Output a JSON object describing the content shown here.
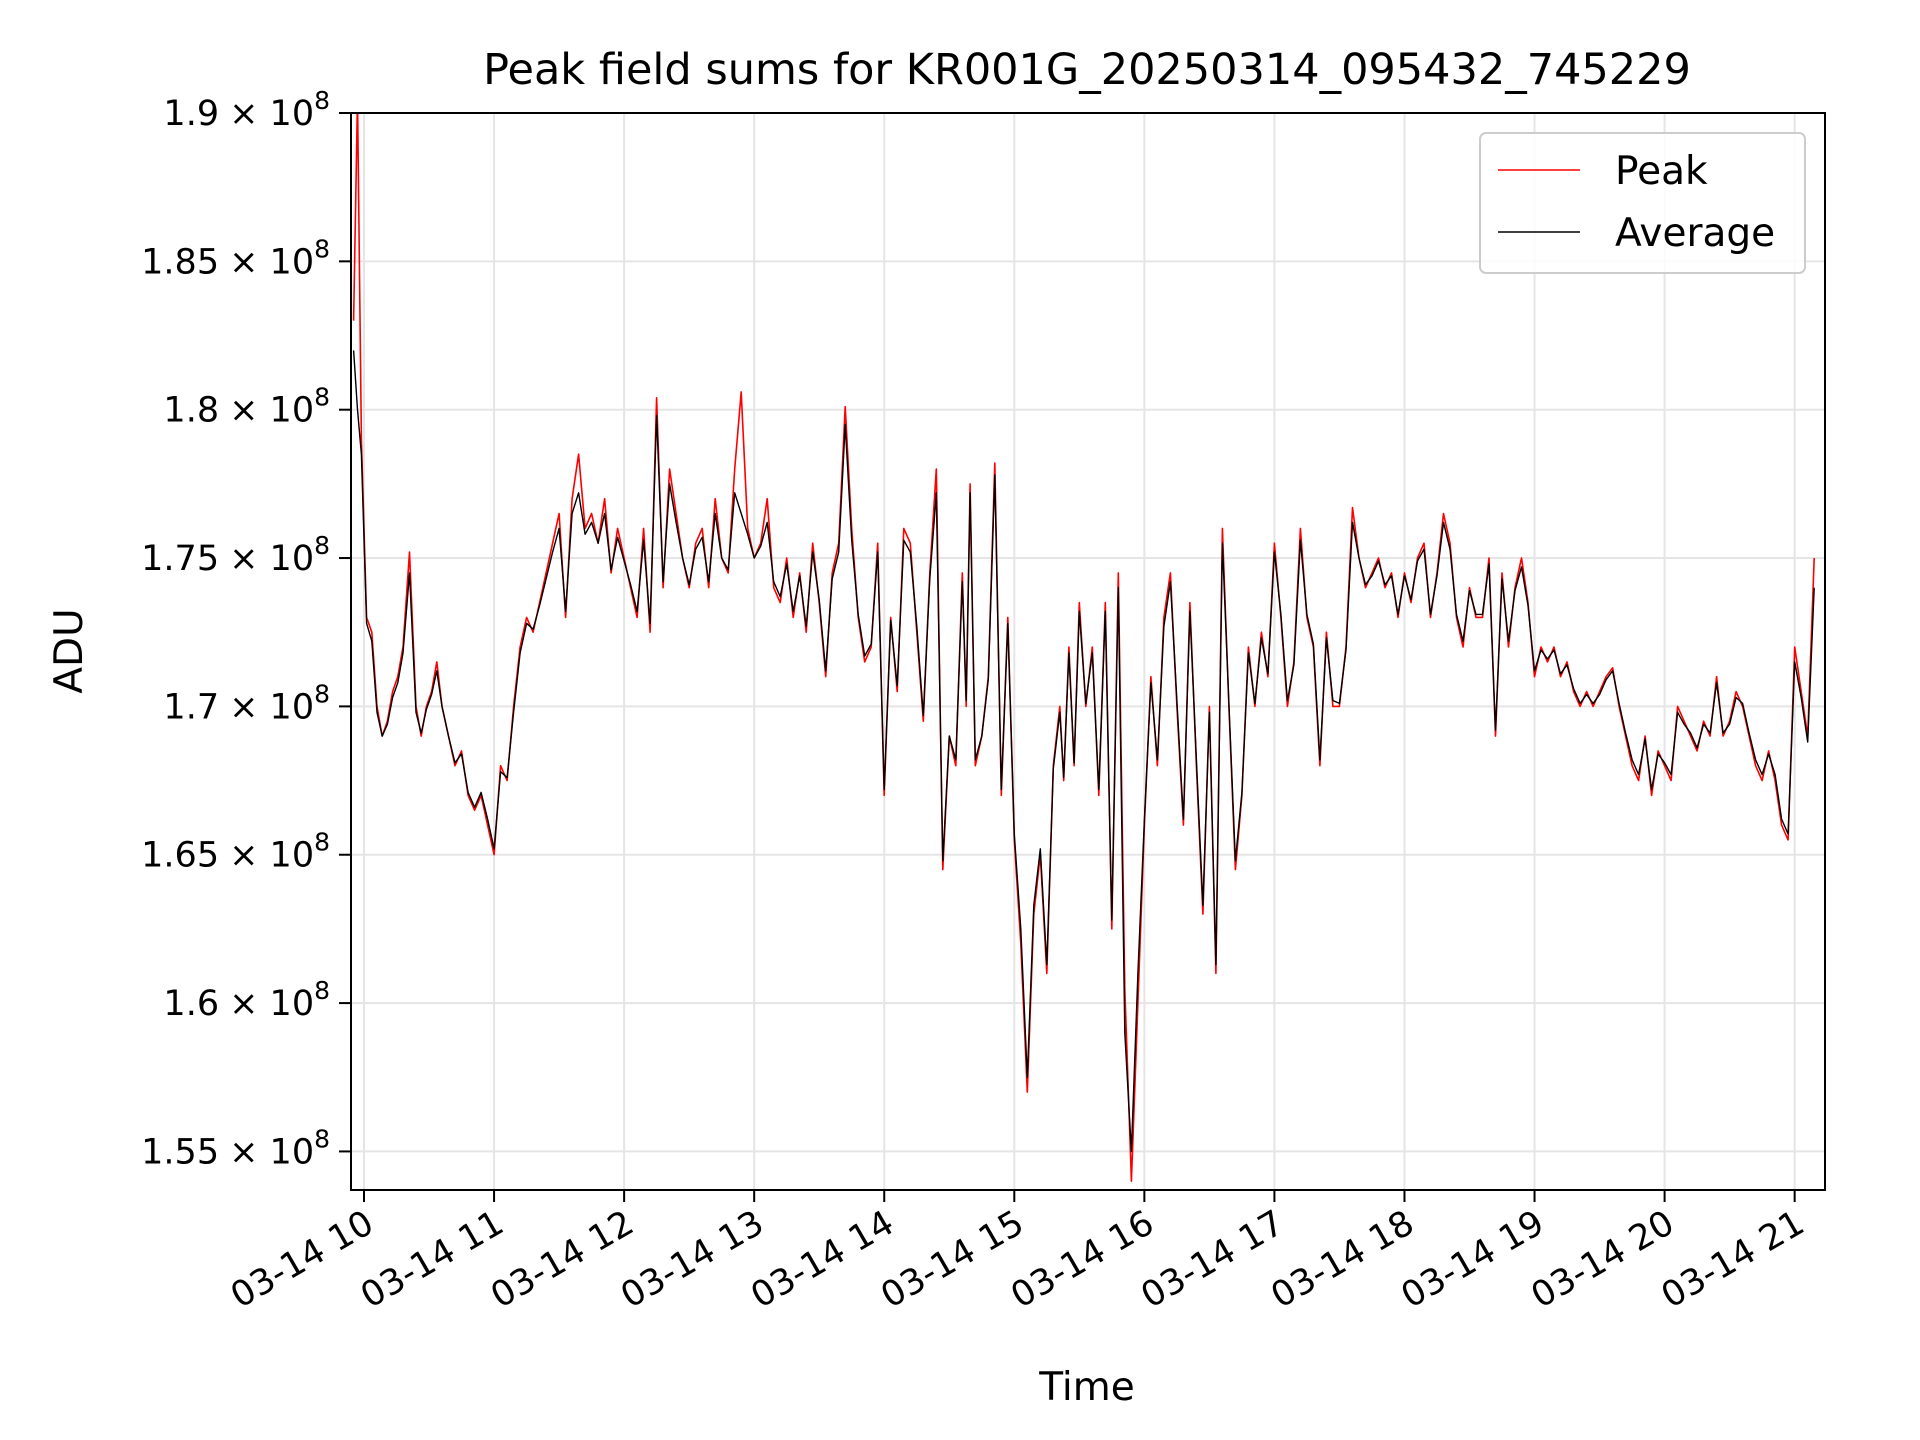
{
  "chart_data": {
    "type": "line",
    "title": "Peak field sums for KR001G_20250314_095432_745229",
    "xlabel": "Time",
    "ylabel": "ADU",
    "xlim": [
      "03-14 09:54",
      "03-14 21:14"
    ],
    "ylim": [
      153700000.0,
      190000000.0
    ],
    "grid": true,
    "legend": "upper-right",
    "x_ticks": [
      {
        "label": "03-14 10",
        "hour": 10
      },
      {
        "label": "03-14 11",
        "hour": 11
      },
      {
        "label": "03-14 12",
        "hour": 12
      },
      {
        "label": "03-14 13",
        "hour": 13
      },
      {
        "label": "03-14 14",
        "hour": 14
      },
      {
        "label": "03-14 15",
        "hour": 15
      },
      {
        "label": "03-14 16",
        "hour": 16
      },
      {
        "label": "03-14 17",
        "hour": 17
      },
      {
        "label": "03-14 18",
        "hour": 18
      },
      {
        "label": "03-14 19",
        "hour": 19
      },
      {
        "label": "03-14 20",
        "hour": 20
      },
      {
        "label": "03-14 21",
        "hour": 21
      }
    ],
    "y_ticks": [
      {
        "mantissa": "1.55",
        "value": 155000000.0
      },
      {
        "mantissa": "1.6",
        "value": 160000000.0
      },
      {
        "mantissa": "1.65",
        "value": 165000000.0
      },
      {
        "mantissa": "1.7",
        "value": 170000000.0
      },
      {
        "mantissa": "1.75",
        "value": 175000000.0
      },
      {
        "mantissa": "1.8",
        "value": 180000000.0
      },
      {
        "mantissa": "1.85",
        "value": 185000000.0
      },
      {
        "mantissa": "1.9",
        "value": 190000000.0
      }
    ],
    "y_tick_base": "× 10",
    "y_tick_exponent": "8",
    "x_hours": [
      9.92,
      9.95,
      9.98,
      10.02,
      10.06,
      10.1,
      10.14,
      10.18,
      10.22,
      10.26,
      10.3,
      10.35,
      10.4,
      10.44,
      10.48,
      10.52,
      10.56,
      10.6,
      10.65,
      10.7,
      10.75,
      10.8,
      10.85,
      10.9,
      10.95,
      11.0,
      11.05,
      11.1,
      11.15,
      11.2,
      11.25,
      11.3,
      11.35,
      11.4,
      11.45,
      11.5,
      11.55,
      11.6,
      11.65,
      11.7,
      11.75,
      11.8,
      11.85,
      11.9,
      11.95,
      12.0,
      12.05,
      12.1,
      12.15,
      12.2,
      12.25,
      12.3,
      12.35,
      12.4,
      12.45,
      12.5,
      12.55,
      12.6,
      12.65,
      12.7,
      12.75,
      12.8,
      12.85,
      12.9,
      12.95,
      13.0,
      13.05,
      13.1,
      13.15,
      13.2,
      13.25,
      13.3,
      13.35,
      13.4,
      13.45,
      13.5,
      13.55,
      13.6,
      13.65,
      13.7,
      13.75,
      13.8,
      13.85,
      13.9,
      13.95,
      14.0,
      14.05,
      14.1,
      14.15,
      14.2,
      14.25,
      14.3,
      14.35,
      14.4,
      14.45,
      14.5,
      14.55,
      14.6,
      14.63,
      14.66,
      14.7,
      14.75,
      14.8,
      14.85,
      14.9,
      14.95,
      15.0,
      15.05,
      15.1,
      15.15,
      15.2,
      15.25,
      15.3,
      15.35,
      15.38,
      15.42,
      15.46,
      15.5,
      15.55,
      15.6,
      15.65,
      15.7,
      15.75,
      15.8,
      15.85,
      15.9,
      15.95,
      16.0,
      16.05,
      16.1,
      16.15,
      16.2,
      16.25,
      16.3,
      16.35,
      16.4,
      16.45,
      16.5,
      16.55,
      16.6,
      16.65,
      16.7,
      16.75,
      16.8,
      16.85,
      16.9,
      16.95,
      17.0,
      17.05,
      17.1,
      17.15,
      17.2,
      17.25,
      17.3,
      17.35,
      17.4,
      17.45,
      17.5,
      17.55,
      17.6,
      17.65,
      17.7,
      17.75,
      17.8,
      17.85,
      17.9,
      17.95,
      18.0,
      18.05,
      18.1,
      18.15,
      18.2,
      18.25,
      18.3,
      18.35,
      18.4,
      18.45,
      18.5,
      18.55,
      18.6,
      18.65,
      18.7,
      18.75,
      18.8,
      18.85,
      18.9,
      18.95,
      19.0,
      19.05,
      19.1,
      19.15,
      19.2,
      19.25,
      19.3,
      19.35,
      19.4,
      19.45,
      19.5,
      19.55,
      19.6,
      19.65,
      19.7,
      19.75,
      19.8,
      19.85,
      19.9,
      19.95,
      20.0,
      20.05,
      20.1,
      20.15,
      20.2,
      20.25,
      20.3,
      20.35,
      20.4,
      20.45,
      20.5,
      20.55,
      20.6,
      20.65,
      20.7,
      20.75,
      20.8,
      20.85,
      20.9,
      20.95,
      21.0,
      21.05,
      21.1,
      21.15,
      21.2
    ],
    "series": [
      {
        "name": "Peak",
        "color": "#ff0000",
        "values": [
          183000000.0,
          190500000.0,
          179000000.0,
          173000000.0,
          172500000.0,
          170000000.0,
          169000000.0,
          169500000.0,
          170500000.0,
          171000000.0,
          172000000.0,
          175200000.0,
          170000000.0,
          169000000.0,
          170000000.0,
          170500000.0,
          171500000.0,
          170000000.0,
          169000000.0,
          168000000.0,
          168500000.0,
          167000000.0,
          166500000.0,
          167000000.0,
          166000000.0,
          165000000.0,
          168000000.0,
          167500000.0,
          170000000.0,
          172000000.0,
          173000000.0,
          172500000.0,
          173500000.0,
          174500000.0,
          175500000.0,
          176500000.0,
          173000000.0,
          177000000.0,
          178500000.0,
          176000000.0,
          176500000.0,
          175500000.0,
          177000000.0,
          174500000.0,
          176000000.0,
          175000000.0,
          174000000.0,
          173000000.0,
          176000000.0,
          172500000.0,
          180400000.0,
          174000000.0,
          178000000.0,
          176500000.0,
          175000000.0,
          174000000.0,
          175500000.0,
          176000000.0,
          174000000.0,
          177000000.0,
          175000000.0,
          174500000.0,
          178000000.0,
          180600000.0,
          176000000.0,
          175000000.0,
          175500000.0,
          177000000.0,
          174000000.0,
          173500000.0,
          175000000.0,
          173000000.0,
          174500000.0,
          172500000.0,
          175500000.0,
          173500000.0,
          171000000.0,
          174500000.0,
          175500000.0,
          180100000.0,
          176000000.0,
          173000000.0,
          171500000.0,
          172000000.0,
          175500000.0,
          167000000.0,
          173000000.0,
          170500000.0,
          176000000.0,
          175500000.0,
          172500000.0,
          169500000.0,
          174500000.0,
          178000000.0,
          164500000.0,
          169000000.0,
          168000000.0,
          174500000.0,
          170000000.0,
          177500000.0,
          168000000.0,
          169000000.0,
          171000000.0,
          178200000.0,
          167000000.0,
          173000000.0,
          165500000.0,
          162000000.0,
          157000000.0,
          163000000.0,
          165000000.0,
          161000000.0,
          168000000.0,
          170000000.0,
          167500000.0,
          172000000.0,
          168000000.0,
          173500000.0,
          170000000.0,
          172000000.0,
          167000000.0,
          173500000.0,
          162500000.0,
          174500000.0,
          160500000.0,
          154000000.0,
          160000000.0,
          166000000.0,
          171000000.0,
          168000000.0,
          173000000.0,
          174500000.0,
          170000000.0,
          166000000.0,
          173500000.0,
          168000000.0,
          163000000.0,
          170000000.0,
          161000000.0,
          176000000.0,
          170000000.0,
          164500000.0,
          167000000.0,
          172000000.0,
          170000000.0,
          172500000.0,
          171000000.0,
          175500000.0,
          173000000.0,
          170000000.0,
          171500000.0,
          176000000.0,
          173000000.0,
          172000000.0,
          168000000.0,
          172500000.0,
          170000000.0,
          170000000.0,
          172000000.0,
          176700000.0,
          175000000.0,
          174000000.0,
          174500000.0,
          175000000.0,
          174000000.0,
          174500000.0,
          173000000.0,
          174500000.0,
          173500000.0,
          175000000.0,
          175500000.0,
          173000000.0,
          174500000.0,
          176500000.0,
          175500000.0,
          173000000.0,
          172000000.0,
          174000000.0,
          173000000.0,
          173000000.0,
          175000000.0,
          169000000.0,
          174500000.0,
          172000000.0,
          174000000.0,
          175000000.0,
          173500000.0,
          171000000.0,
          172000000.0,
          171500000.0,
          172000000.0,
          171000000.0,
          171500000.0,
          170500000.0,
          170000000.0,
          170500000.0,
          170000000.0,
          170500000.0,
          171000000.0,
          171300000.0,
          170000000.0,
          169000000.0,
          168000000.0,
          167500000.0,
          169000000.0,
          167000000.0,
          168500000.0,
          168000000.0,
          167500000.0,
          170000000.0,
          169500000.0,
          169000000.0,
          168500000.0,
          169500000.0,
          169000000.0,
          171000000.0,
          169000000.0,
          169500000.0,
          170500000.0,
          170000000.0,
          169000000.0,
          168000000.0,
          167500000.0,
          168500000.0,
          167500000.0,
          166000000.0,
          165500000.0,
          172000000.0,
          170500000.0,
          169000000.0,
          175000000.0
        ]
      },
      {
        "name": "Average",
        "color": "#000000",
        "values": [
          182000000.0,
          180000000.0,
          178500000.0,
          172800000.0,
          172200000.0,
          169800000.0,
          169000000.0,
          169400000.0,
          170300000.0,
          170800000.0,
          171800000.0,
          174500000.0,
          169800000.0,
          169100000.0,
          169900000.0,
          170400000.0,
          171200000.0,
          170000000.0,
          169000000.0,
          168100000.0,
          168400000.0,
          167100000.0,
          166600000.0,
          167100000.0,
          166200000.0,
          165200000.0,
          167800000.0,
          167600000.0,
          169800000.0,
          171800000.0,
          172800000.0,
          172600000.0,
          173400000.0,
          174300000.0,
          175200000.0,
          176000000.0,
          173200000.0,
          176500000.0,
          177200000.0,
          175800000.0,
          176200000.0,
          175500000.0,
          176500000.0,
          174600000.0,
          175700000.0,
          174900000.0,
          174100000.0,
          173200000.0,
          175600000.0,
          172800000.0,
          179800000.0,
          174200000.0,
          177500000.0,
          176200000.0,
          175000000.0,
          174100000.0,
          175300000.0,
          175700000.0,
          174200000.0,
          176500000.0,
          175000000.0,
          174600000.0,
          177200000.0,
          176500000.0,
          175800000.0,
          175000000.0,
          175400000.0,
          176200000.0,
          174200000.0,
          173700000.0,
          174800000.0,
          173200000.0,
          174400000.0,
          172700000.0,
          175200000.0,
          173600000.0,
          171200000.0,
          174300000.0,
          175200000.0,
          179500000.0,
          175600000.0,
          173100000.0,
          171700000.0,
          172100000.0,
          175200000.0,
          167200000.0,
          172900000.0,
          170700000.0,
          175600000.0,
          175200000.0,
          172700000.0,
          169700000.0,
          174300000.0,
          177200000.0,
          164800000.0,
          169000000.0,
          168200000.0,
          174200000.0,
          170200000.0,
          177200000.0,
          168200000.0,
          169000000.0,
          170900000.0,
          177800000.0,
          167200000.0,
          172800000.0,
          165700000.0,
          162500000.0,
          157500000.0,
          163300000.0,
          165200000.0,
          161300000.0,
          167900000.0,
          169800000.0,
          167600000.0,
          171800000.0,
          168100000.0,
          173200000.0,
          170100000.0,
          171800000.0,
          167200000.0,
          173200000.0,
          162800000.0,
          174000000.0,
          159000000.0,
          155000000.0,
          161000000.0,
          166200000.0,
          170800000.0,
          168200000.0,
          172700000.0,
          174200000.0,
          170200000.0,
          166200000.0,
          173200000.0,
          168200000.0,
          163300000.0,
          169800000.0,
          161300000.0,
          175500000.0,
          170100000.0,
          164800000.0,
          167100000.0,
          171800000.0,
          170100000.0,
          172300000.0,
          171100000.0,
          175200000.0,
          173100000.0,
          170200000.0,
          171400000.0,
          175600000.0,
          173100000.0,
          172100000.0,
          168200000.0,
          172300000.0,
          170200000.0,
          170100000.0,
          171900000.0,
          176200000.0,
          175000000.0,
          174100000.0,
          174400000.0,
          174900000.0,
          174100000.0,
          174400000.0,
          173100000.0,
          174400000.0,
          173600000.0,
          174900000.0,
          175300000.0,
          173100000.0,
          174400000.0,
          176200000.0,
          175300000.0,
          173100000.0,
          172200000.0,
          173900000.0,
          173100000.0,
          173100000.0,
          174800000.0,
          169200000.0,
          174300000.0,
          172200000.0,
          173900000.0,
          174700000.0,
          173400000.0,
          171200000.0,
          171900000.0,
          171600000.0,
          171900000.0,
          171100000.0,
          171400000.0,
          170600000.0,
          170100000.0,
          170400000.0,
          170100000.0,
          170400000.0,
          170900000.0,
          171200000.0,
          170100000.0,
          169100000.0,
          168200000.0,
          167700000.0,
          168900000.0,
          167200000.0,
          168400000.0,
          168100000.0,
          167700000.0,
          169800000.0,
          169400000.0,
          169100000.0,
          168600000.0,
          169400000.0,
          169100000.0,
          170800000.0,
          169100000.0,
          169400000.0,
          170300000.0,
          170100000.0,
          169100000.0,
          168200000.0,
          167700000.0,
          168400000.0,
          167700000.0,
          166200000.0,
          165700000.0,
          171500000.0,
          170300000.0,
          168800000.0,
          174000000.0
        ]
      }
    ]
  }
}
